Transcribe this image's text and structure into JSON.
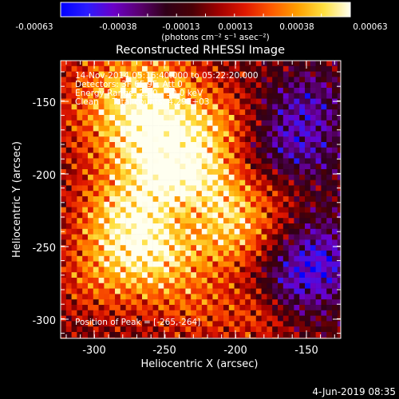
{
  "colorbar": {
    "ticks": [
      "-0.00063",
      "-0.00038",
      "-0.00013",
      "0.00013",
      "0.00038",
      "0.00063"
    ],
    "units": "(photons cm⁻² s⁻¹ asec⁻²)",
    "gradient_stops": [
      "#0000ff",
      "#2b1bff",
      "#6b00c8",
      "#5a0070",
      "#300018",
      "#4a0006",
      "#a00000",
      "#e01800",
      "#ff5a00",
      "#ffa000",
      "#ffe040",
      "#fffff0"
    ]
  },
  "image": {
    "title": "Reconstructed RHESSI Image",
    "ylabel": "Heliocentric Y (arcsec)",
    "xlabel": "Heliocentric X (arcsec)",
    "yticks": [
      "-150",
      "-200",
      "-250",
      "-300"
    ],
    "xticks": [
      "-300",
      "-250",
      "-200",
      "-150"
    ],
    "annotations": [
      "14-Nov-2014 05:16:40.000 to 05:22:20.000",
      "Detectors: 3F 6F 9F, Att 0",
      "Energy Range: 25.0 - 50.0 keV",
      "Clean     Total counts: 4.29E+03"
    ],
    "peak_label": "Position of Peak = [-265,-264]"
  },
  "footer": {
    "timestamp": "4-Jun-2019 08:35"
  }
}
